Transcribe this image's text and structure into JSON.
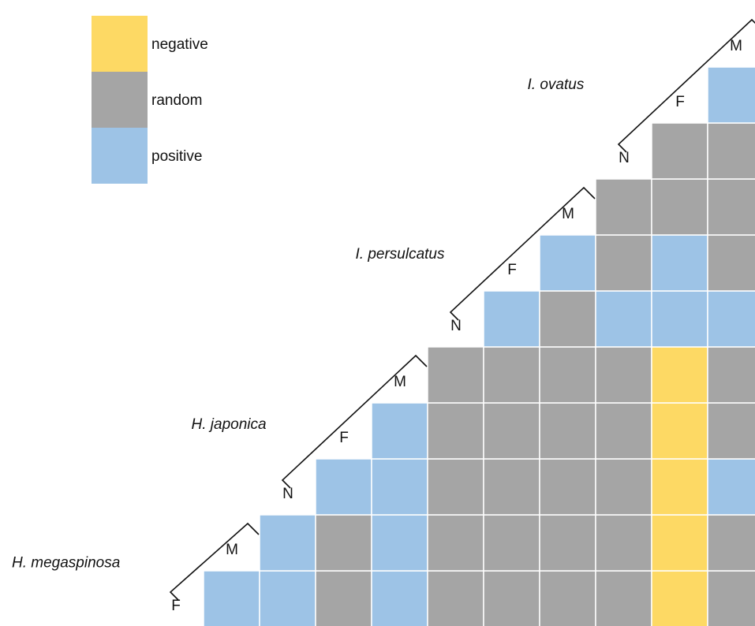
{
  "chart_data": {
    "type": "heatmap",
    "legend": {
      "placement": "top-left",
      "entries": [
        {
          "key": "negative",
          "label": "negative",
          "color": "#FDD964"
        },
        {
          "key": "random",
          "label": "random",
          "color": "#A5A5A5"
        },
        {
          "key": "positive",
          "label": "positive",
          "color": "#9DC3E6"
        }
      ]
    },
    "species": [
      {
        "name": "H. megaspinosa",
        "stages": [
          "F",
          "M"
        ]
      },
      {
        "name": "H. japonica",
        "stages": [
          "N",
          "F",
          "M"
        ]
      },
      {
        "name": "I. persulcatus",
        "stages": [
          "N",
          "F",
          "M"
        ]
      },
      {
        "name": "I. ovatus",
        "stages": [
          "N",
          "F",
          "M"
        ]
      }
    ],
    "rows": [
      [
        "positive",
        "positive",
        "random",
        "positive",
        "random",
        "random",
        "random",
        "random",
        "negative",
        "random"
      ],
      [
        "positive",
        "random",
        "positive",
        "random",
        "random",
        "random",
        "random",
        "negative",
        "random"
      ],
      [
        "positive",
        "positive",
        "random",
        "random",
        "random",
        "random",
        "negative",
        "positive"
      ],
      [
        "positive",
        "random",
        "random",
        "random",
        "random",
        "negative",
        "random"
      ],
      [
        "random",
        "random",
        "random",
        "random",
        "negative",
        "random"
      ],
      [
        "positive",
        "random",
        "positive",
        "positive",
        "positive"
      ],
      [
        "positive",
        "random",
        "positive",
        "random"
      ],
      [
        "random",
        "random",
        "random"
      ],
      [
        "random",
        "random"
      ],
      [
        "positive"
      ]
    ]
  }
}
